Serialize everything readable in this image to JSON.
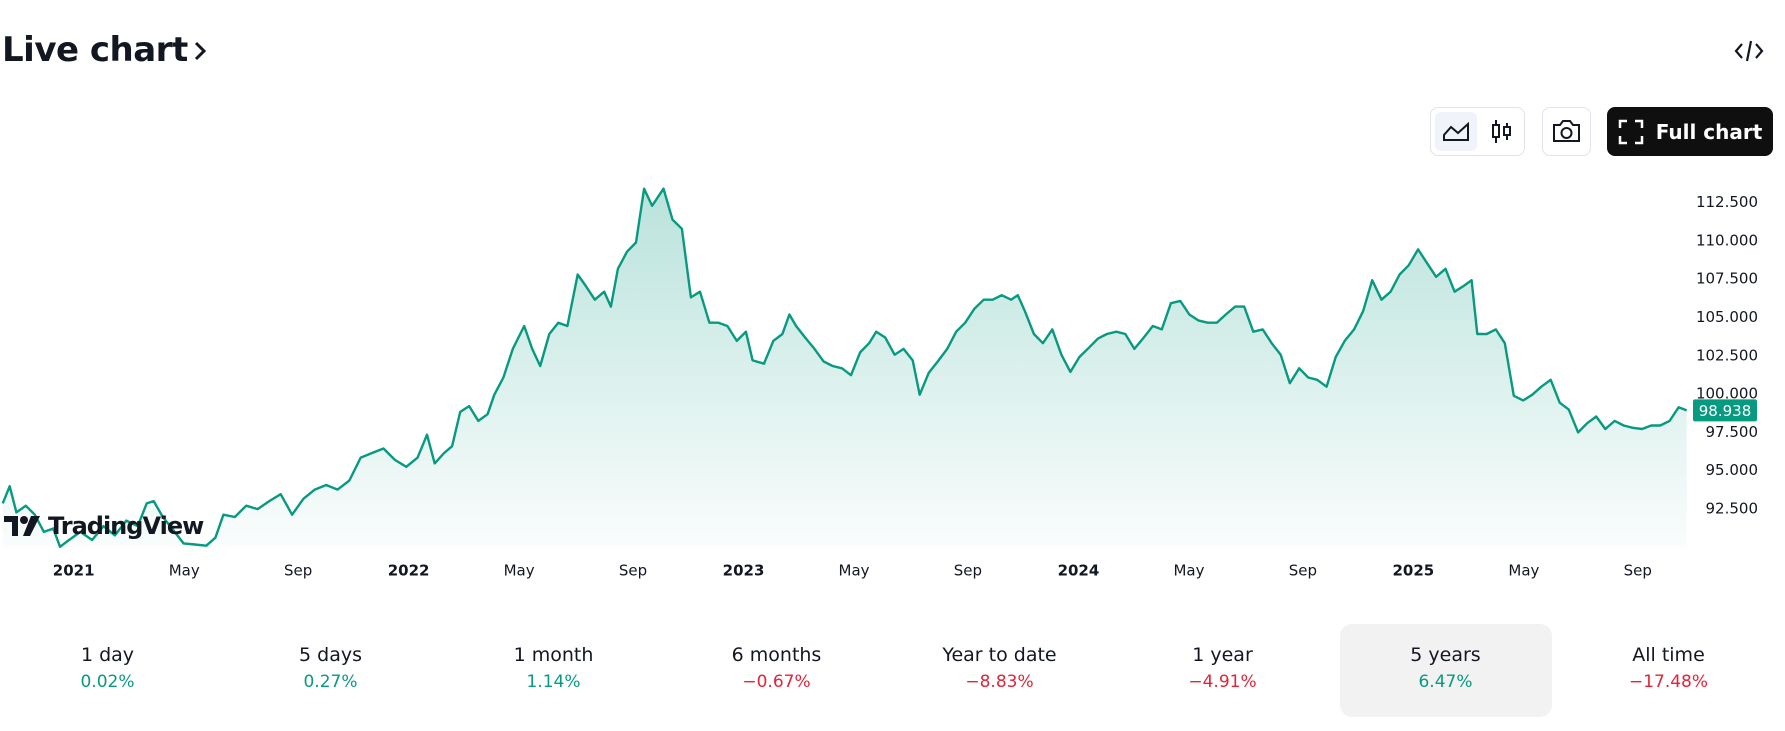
{
  "header": {
    "title": "Live chart"
  },
  "buttons": {
    "full_chart": "Full chart"
  },
  "logo": "TradingView",
  "chart_data": {
    "type": "line",
    "color": "#089981",
    "xlim": [
      2020.78,
      2025.82
    ],
    "ylim": [
      90,
      114.5
    ],
    "grid": false,
    "xticks": [
      {
        "value": 2021,
        "label": "2021"
      },
      {
        "value": 2021.33,
        "label": "May"
      },
      {
        "value": 2021.67,
        "label": "Sep"
      },
      {
        "value": 2022,
        "label": "2022"
      },
      {
        "value": 2022.33,
        "label": "May"
      },
      {
        "value": 2022.67,
        "label": "Sep"
      },
      {
        "value": 2023,
        "label": "2023"
      },
      {
        "value": 2023.33,
        "label": "May"
      },
      {
        "value": 2023.67,
        "label": "Sep"
      },
      {
        "value": 2024,
        "label": "2024"
      },
      {
        "value": 2024.33,
        "label": "May"
      },
      {
        "value": 2024.67,
        "label": "Sep"
      },
      {
        "value": 2025,
        "label": "2025"
      },
      {
        "value": 2025.33,
        "label": "May"
      },
      {
        "value": 2025.67,
        "label": "Sep"
      }
    ],
    "yticks": [
      {
        "value": 92.5,
        "label": "92.500"
      },
      {
        "value": 95,
        "label": "95.000"
      },
      {
        "value": 97.5,
        "label": "97.500"
      },
      {
        "value": 100,
        "label": "100.000"
      },
      {
        "value": 102.5,
        "label": "102.500"
      },
      {
        "value": 105,
        "label": "105.000"
      },
      {
        "value": 107.5,
        "label": "107.500"
      },
      {
        "value": 110,
        "label": "110.000"
      },
      {
        "value": 112.5,
        "label": "112.500"
      }
    ],
    "x": [
      2020.788,
      2020.809,
      2020.829,
      2020.857,
      2020.884,
      2020.911,
      2020.939,
      2020.959,
      2020.986,
      2021.02,
      2021.055,
      2021.089,
      2021.123,
      2021.157,
      2021.191,
      2021.218,
      2021.239,
      2021.266,
      2021.294,
      2021.328,
      2021.362,
      2021.396,
      2021.423,
      2021.447,
      2021.481,
      2021.515,
      2021.549,
      2021.584,
      2021.618,
      2021.652,
      2021.686,
      2021.72,
      2021.754,
      2021.788,
      2021.823,
      2021.857,
      2021.891,
      2021.925,
      2021.959,
      2021.993,
      2022.027,
      2022.055,
      2022.078,
      2022.106,
      2022.13,
      2022.154,
      2022.181,
      2022.208,
      2022.236,
      2022.256,
      2022.283,
      2022.311,
      2022.345,
      2022.369,
      2022.393,
      2022.42,
      2022.447,
      2022.474,
      2022.505,
      2022.529,
      2022.556,
      2022.584,
      2022.604,
      2022.625,
      2022.652,
      2022.679,
      2022.703,
      2022.727,
      2022.761,
      2022.788,
      2022.816,
      2022.843,
      2022.87,
      2022.898,
      2022.925,
      2022.952,
      2022.98,
      2023.007,
      2023.027,
      2023.061,
      2023.089,
      2023.116,
      2023.137,
      2023.157,
      2023.184,
      2023.212,
      2023.239,
      2023.266,
      2023.294,
      2023.321,
      2023.348,
      2023.375,
      2023.396,
      2023.423,
      2023.451,
      2023.478,
      2023.505,
      2023.526,
      2023.553,
      2023.58,
      2023.608,
      2023.635,
      2023.662,
      2023.689,
      2023.717,
      2023.744,
      2023.771,
      2023.799,
      2023.819,
      2023.84,
      2023.867,
      2023.894,
      2023.922,
      2023.949,
      2023.976,
      2024.003,
      2024.031,
      2024.058,
      2024.085,
      2024.113,
      2024.14,
      2024.167,
      2024.195,
      2024.222,
      2024.249,
      2024.276,
      2024.304,
      2024.331,
      2024.358,
      2024.386,
      2024.413,
      2024.44,
      2024.468,
      2024.495,
      2024.522,
      2024.55,
      2024.577,
      2024.604,
      2024.631,
      2024.659,
      2024.686,
      2024.713,
      2024.741,
      2024.768,
      2024.795,
      2024.823,
      2024.85,
      2024.877,
      2024.905,
      2024.932,
      2024.959,
      2024.986,
      2025.014,
      2025.041,
      2025.068,
      2025.096,
      2025.123,
      2025.15,
      2025.174,
      2025.191,
      2025.219,
      2025.246,
      2025.273,
      2025.3,
      2025.328,
      2025.355,
      2025.382,
      2025.41,
      2025.437,
      2025.464,
      2025.492,
      2025.519,
      2025.546,
      2025.573,
      2025.601,
      2025.628,
      2025.655,
      2025.683,
      2025.71,
      2025.737,
      2025.765,
      2025.792,
      2025.816
    ],
    "values": [
      92.87,
      93.99,
      92.28,
      92.72,
      92.13,
      91.01,
      91.23,
      90.04,
      90.48,
      91.01,
      90.48,
      91.38,
      90.78,
      91.75,
      91.38,
      92.87,
      93.02,
      91.98,
      91.23,
      90.26,
      90.19,
      90.11,
      90.63,
      92.13,
      91.98,
      92.72,
      92.5,
      93.02,
      93.47,
      92.13,
      93.17,
      93.77,
      94.07,
      93.77,
      94.36,
      95.86,
      96.16,
      96.45,
      95.71,
      95.26,
      95.86,
      97.35,
      95.48,
      96.16,
      96.6,
      98.84,
      99.22,
      98.25,
      98.69,
      99.96,
      101.08,
      102.95,
      104.44,
      102.95,
      101.83,
      103.92,
      104.66,
      104.44,
      107.8,
      107.05,
      106.16,
      106.68,
      105.71,
      108.17,
      109.29,
      109.89,
      113.4,
      112.28,
      113.4,
      111.38,
      110.78,
      106.31,
      106.68,
      104.66,
      104.66,
      104.44,
      103.47,
      104.07,
      102.2,
      101.98,
      103.47,
      103.92,
      105.19,
      104.44,
      103.69,
      102.95,
      102.13,
      101.83,
      101.68,
      101.23,
      102.72,
      103.32,
      104.07,
      103.69,
      102.57,
      102.95,
      102.2,
      99.96,
      101.38,
      102.13,
      102.95,
      104.07,
      104.66,
      105.56,
      106.16,
      106.16,
      106.45,
      106.16,
      106.45,
      105.41,
      103.92,
      103.32,
      104.22,
      102.57,
      101.45,
      102.42,
      103.02,
      103.62,
      103.92,
      104.07,
      103.92,
      102.95,
      103.69,
      104.44,
      104.22,
      105.93,
      106.08,
      105.19,
      104.81,
      104.66,
      104.66,
      105.19,
      105.71,
      105.71,
      104.07,
      104.22,
      103.32,
      102.57,
      100.71,
      101.68,
      101.08,
      100.93,
      100.48,
      102.42,
      103.47,
      104.22,
      105.41,
      107.43,
      106.16,
      106.68,
      107.8,
      108.4,
      109.44,
      108.54,
      107.65,
      108.17,
      106.68,
      107.05,
      107.43,
      103.92,
      103.92,
      104.22,
      103.32,
      99.89,
      99.59,
      99.96,
      100.48,
      100.93,
      99.44,
      98.99,
      97.5,
      98.1,
      98.54,
      97.72,
      98.25,
      97.95,
      97.8,
      97.72,
      97.95,
      97.95,
      98.25,
      99.14,
      98.938
    ]
  },
  "periods": [
    {
      "label": "1 day",
      "change": "0.02%"
    },
    {
      "label": "5 days",
      "change": "0.27%"
    },
    {
      "label": "1 month",
      "change": "1.14%"
    },
    {
      "label": "6 months",
      "change": "−0.67%"
    },
    {
      "label": "Year to date",
      "change": "−8.83%"
    },
    {
      "label": "1 year",
      "change": "−4.91%"
    },
    {
      "label": "5 years",
      "change": "6.47%"
    },
    {
      "label": "All time",
      "change": "−17.48%"
    }
  ],
  "selected_period": 6
}
